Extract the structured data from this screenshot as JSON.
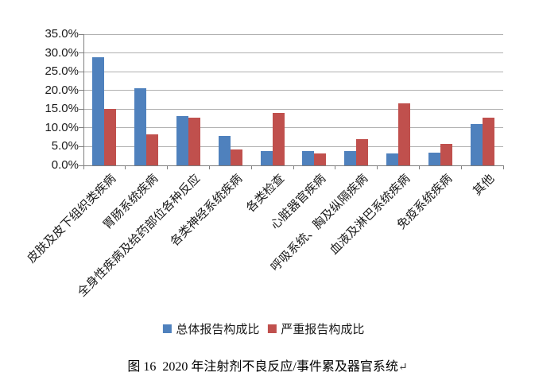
{
  "chart_data": {
    "type": "bar",
    "title": "图 16  2020 年注射剂不良反应/事件累及器官系统",
    "categories": [
      "皮肤及皮下组织类疾病",
      "胃肠系统疾病",
      "全身性疾病及给药部位各种反应",
      "各类神经系统疾病",
      "各类检查",
      "心脏器官疾病",
      "呼吸系统、胸及纵隔疾病",
      "血液及淋巴系统疾病",
      "免疫系统疾病",
      "其他"
    ],
    "series": [
      {
        "name": "总体报告构成比",
        "color": "#4F81BD",
        "values": [
          28.8,
          20.6,
          13.1,
          7.8,
          3.9,
          3.8,
          3.9,
          3.1,
          3.3,
          11.0
        ]
      },
      {
        "name": "严重报告构成比",
        "color": "#C0504D",
        "values": [
          15.0,
          8.2,
          12.7,
          4.2,
          14.0,
          3.1,
          6.9,
          16.6,
          5.7,
          12.8
        ]
      }
    ],
    "xlabel": "",
    "ylabel": "",
    "ylim": [
      0,
      35
    ],
    "ytick_step": 5,
    "ytick_labels": [
      "0.0%",
      "5.0%",
      "10.0%",
      "15.0%",
      "20.0%",
      "25.0%",
      "30.0%",
      "35.0%"
    ],
    "grid": true,
    "legend_position": "bottom"
  },
  "legend": {
    "items": [
      {
        "label": "总体报告构成比",
        "color": "#4F81BD"
      },
      {
        "label": "严重报告构成比",
        "color": "#C0504D"
      }
    ]
  },
  "caption": {
    "text": "图 16  2020 年注射剂不良反应/事件累及器官系统",
    "paragraph_mark": "↵"
  },
  "colors": {
    "series_overall": "#4F81BD",
    "series_serious": "#C0504D",
    "gridline": "#B0B0B0",
    "axis": "#7F7F7F",
    "text": "#1A1A1A",
    "background": "#FFFFFF"
  }
}
